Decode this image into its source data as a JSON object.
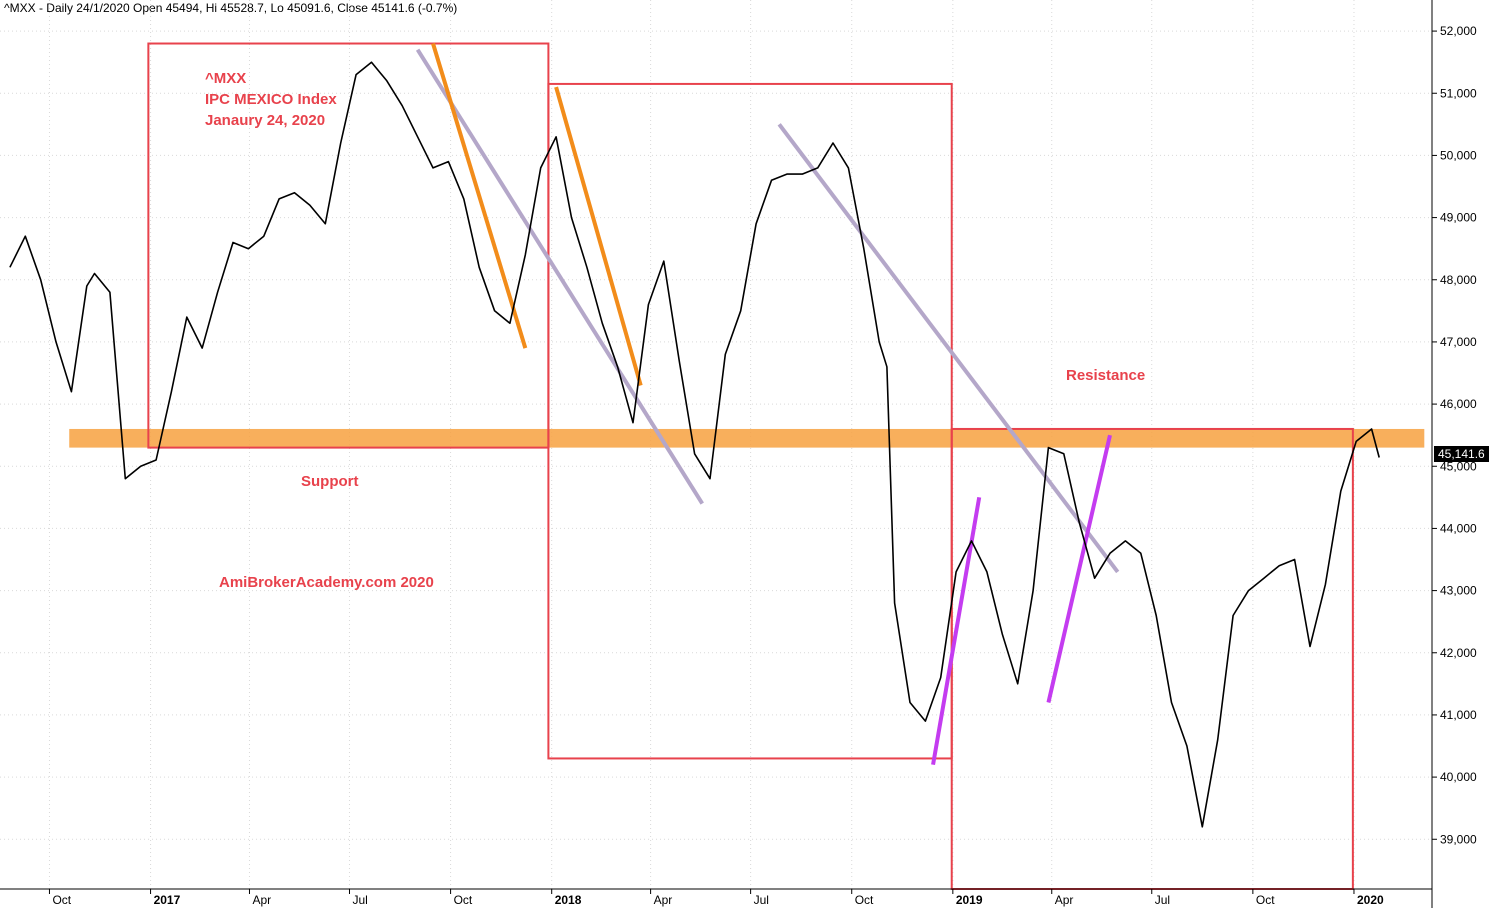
{
  "header": {
    "line": "^MXX - Daily 24/1/2020 Open 45494, Hi 45528.7, Lo 45091.6, Close 45141.6 (-0.7%)"
  },
  "notes": {
    "title_lines": [
      "^MXX",
      "IPC MEXICO Index",
      "Janaury 24, 2020"
    ],
    "support": "Support",
    "resistance": "Resistance",
    "watermark": "AmiBrokerAcademy.com   2020"
  },
  "last_price_tag": "45,141.6",
  "colors": {
    "price": "#000000",
    "box": "#e8424c",
    "band": "#f7a13f",
    "trend_gray": "#b4a7c9",
    "trend_orange": "#f28c1a",
    "trend_purple": "#c43cf0",
    "grid": "#d9d9d9"
  },
  "chart_data": {
    "type": "line",
    "series": [
      {
        "values_desc": "daily close",
        "x": [
          "2016-08-26",
          "2016-09-09",
          "2016-09-23",
          "2016-10-07",
          "2016-10-21",
          "2016-11-04",
          "2016-11-11",
          "2016-11-25",
          "2016-12-09",
          "2016-12-23",
          "2017-01-06",
          "2017-01-20",
          "2017-02-03",
          "2017-02-17",
          "2017-03-03",
          "2017-03-17",
          "2017-03-31",
          "2017-04-14",
          "2017-04-28",
          "2017-05-12",
          "2017-05-26",
          "2017-06-09",
          "2017-06-23",
          "2017-07-07",
          "2017-07-21",
          "2017-08-04",
          "2017-08-18",
          "2017-09-01",
          "2017-09-15",
          "2017-09-29",
          "2017-10-13",
          "2017-10-27",
          "2017-11-10",
          "2017-11-24",
          "2017-12-08",
          "2017-12-22",
          "2018-01-05",
          "2018-01-19",
          "2018-02-02",
          "2018-02-16",
          "2018-03-02",
          "2018-03-16",
          "2018-03-30",
          "2018-04-13",
          "2018-04-27",
          "2018-05-11",
          "2018-05-25",
          "2018-06-08",
          "2018-06-22",
          "2018-07-06",
          "2018-07-20",
          "2018-08-03",
          "2018-08-17",
          "2018-08-31",
          "2018-09-14",
          "2018-09-28",
          "2018-10-12",
          "2018-10-26",
          "2018-11-02",
          "2018-11-09",
          "2018-11-23",
          "2018-12-07",
          "2018-12-21",
          "2019-01-04",
          "2019-01-18",
          "2019-02-01",
          "2019-02-15",
          "2019-03-01",
          "2019-03-15",
          "2019-03-29",
          "2019-04-12",
          "2019-04-26",
          "2019-05-10",
          "2019-05-24",
          "2019-06-07",
          "2019-06-21",
          "2019-07-05",
          "2019-07-19",
          "2019-08-02",
          "2019-08-16",
          "2019-08-30",
          "2019-09-13",
          "2019-09-27",
          "2019-10-11",
          "2019-10-25",
          "2019-11-08",
          "2019-11-22",
          "2019-12-06",
          "2019-12-20",
          "2020-01-03",
          "2020-01-17",
          "2020-01-24"
        ],
        "y": [
          48200,
          48700,
          48000,
          47000,
          46200,
          47900,
          48100,
          47800,
          44800,
          45000,
          45100,
          46200,
          47400,
          46900,
          47800,
          48600,
          48500,
          48700,
          49300,
          49400,
          49200,
          48900,
          50200,
          51300,
          51500,
          51200,
          50800,
          50300,
          49800,
          49900,
          49300,
          48200,
          47500,
          47300,
          48400,
          49800,
          50300,
          49000,
          48200,
          47300,
          46600,
          45700,
          47600,
          48300,
          46700,
          45200,
          44800,
          46800,
          47500,
          48900,
          49600,
          49700,
          49700,
          49800,
          50200,
          49800,
          48500,
          47000,
          46600,
          42800,
          41200,
          40900,
          41600,
          43300,
          43800,
          43300,
          42300,
          41500,
          43000,
          45300,
          45200,
          44100,
          43200,
          43600,
          43800,
          43600,
          42600,
          41200,
          40500,
          39200,
          40600,
          42600,
          43000,
          43200,
          43400,
          43500,
          42100,
          43100,
          44600,
          45400,
          45600,
          45141.6
        ]
      }
    ],
    "ylim": [
      38200,
      52500
    ],
    "yticks": [
      "52,000",
      "51,000",
      "50,000",
      "49,000",
      "48,000",
      "47,000",
      "46,000",
      "45,000",
      "44,000",
      "43,000",
      "42,000",
      "41,000",
      "40,000",
      "39,000"
    ],
    "xticks": [
      "Oct",
      "2017",
      "Apr",
      "Jul",
      "Oct",
      "2018",
      "Apr",
      "Jul",
      "Oct",
      "2019",
      "Apr",
      "Jul",
      "Oct",
      "2020"
    ],
    "bold_xticks": [
      "2017",
      "2018",
      "2019",
      "2020"
    ],
    "support_band": [
      45300,
      45600
    ],
    "boxes": [
      {
        "from": "2016-12-30",
        "to": "2017-12-29",
        "low": 45300,
        "high": 51800
      },
      {
        "from": "2017-12-29",
        "to": "2018-12-31",
        "low": 40300,
        "high": 51150
      },
      {
        "from": "2018-12-31",
        "to": "2019-12-31",
        "low": 38200,
        "high": 45600
      }
    ],
    "trendlines": [
      {
        "color": "gray",
        "from": [
          "2017-09-01",
          51700
        ],
        "to": [
          "2018-05-18",
          44400
        ]
      },
      {
        "color": "gray",
        "from": [
          "2018-07-27",
          50500
        ],
        "to": [
          "2019-05-31",
          43300
        ]
      },
      {
        "color": "orange",
        "from": [
          "2017-09-15",
          51800
        ],
        "to": [
          "2017-12-08",
          46900
        ]
      },
      {
        "color": "orange",
        "from": [
          "2018-01-05",
          51100
        ],
        "to": [
          "2018-03-23",
          46300
        ]
      },
      {
        "color": "purple",
        "from": [
          "2018-12-14",
          40200
        ],
        "to": [
          "2019-01-25",
          44500
        ]
      },
      {
        "color": "purple",
        "from": [
          "2019-03-29",
          41200
        ],
        "to": [
          "2019-05-24",
          45500
        ]
      }
    ],
    "grid": true
  }
}
